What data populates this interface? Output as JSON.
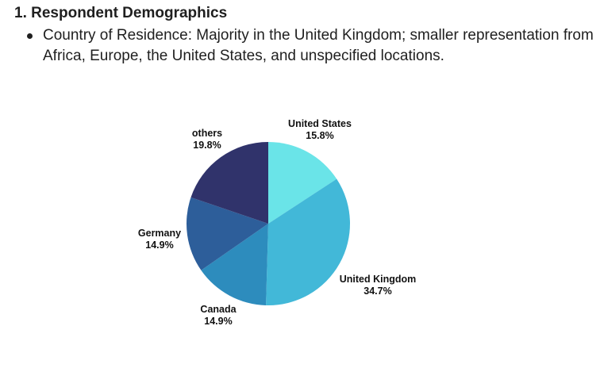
{
  "section": {
    "heading": "1. Respondent Demographics",
    "bullet": "Country of Residence: Majority in the United Kingdom; smaller representation from Africa, Europe, the United States, and unspecified locations."
  },
  "chart_data": {
    "type": "pie",
    "title": "",
    "start": "12 o'clock",
    "direction": "clockwise",
    "slices": [
      {
        "label": "United States",
        "value": 15.8,
        "display": "15.8%",
        "color": "#6ae4e8"
      },
      {
        "label": "United Kingdom",
        "value": 34.7,
        "display": "34.7%",
        "color": "#42b8d8"
      },
      {
        "label": "Canada",
        "value": 14.9,
        "display": "14.9%",
        "color": "#2d8cbd"
      },
      {
        "label": "Germany",
        "value": 14.9,
        "display": "14.9%",
        "color": "#2d5e9a"
      },
      {
        "label": "others",
        "value": 19.8,
        "display": "19.8%",
        "color": "#30336b"
      }
    ]
  }
}
